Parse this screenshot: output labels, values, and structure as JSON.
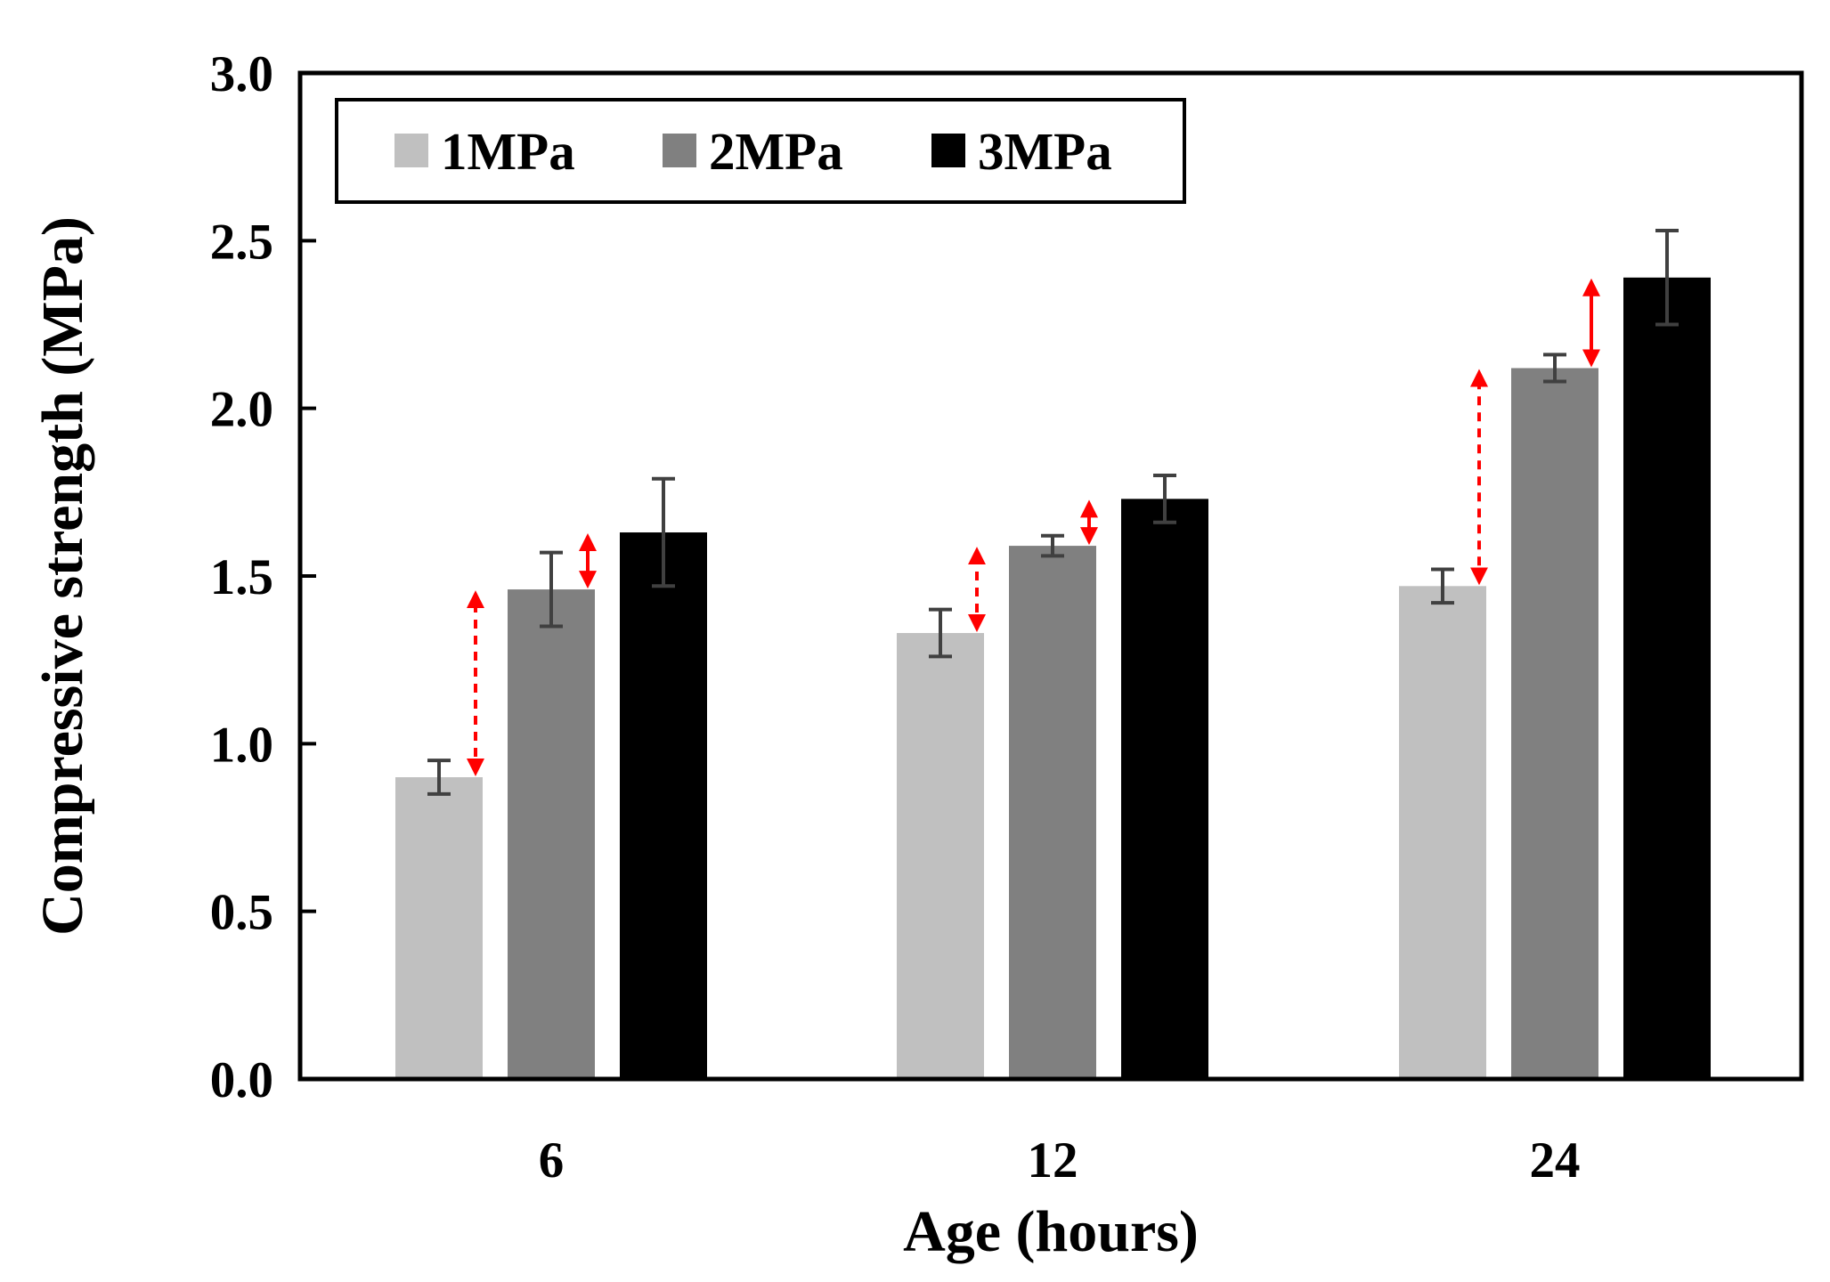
{
  "chart_data": {
    "type": "bar",
    "categories": [
      "6",
      "12",
      "24"
    ],
    "series": [
      {
        "name": "1MPa",
        "color": "#c0c0c0",
        "values": [
          0.9,
          1.33,
          1.47
        ],
        "errors": [
          0.05,
          0.07,
          0.05
        ]
      },
      {
        "name": "2MPa",
        "color": "#808080",
        "values": [
          1.46,
          1.59,
          2.12
        ],
        "errors": [
          0.11,
          0.03,
          0.04
        ]
      },
      {
        "name": "3MPa",
        "color": "#000000",
        "values": [
          1.63,
          1.73,
          2.39
        ],
        "errors": [
          0.16,
          0.07,
          0.14
        ]
      }
    ],
    "xlabel": "Age (hours)",
    "ylabel": "Compressive strength (MPa)",
    "ylim": [
      0,
      3.0
    ],
    "yticks": [
      "0.0",
      "0.5",
      "1.0",
      "1.5",
      "2.0",
      "2.5",
      "3.0"
    ],
    "grid": false,
    "legend_position": "top-left",
    "annotations": {
      "color": "#ff0000",
      "arrows": [
        {
          "category": "6",
          "from": 0.9,
          "to": 1.46,
          "style": "dashed"
        },
        {
          "category": "6",
          "from": 1.46,
          "to": 1.63,
          "style": "solid"
        },
        {
          "category": "12",
          "from": 1.33,
          "to": 1.59,
          "style": "dashed"
        },
        {
          "category": "12",
          "from": 1.59,
          "to": 1.73,
          "style": "solid"
        },
        {
          "category": "24",
          "from": 1.47,
          "to": 2.12,
          "style": "dashed"
        },
        {
          "category": "24",
          "from": 2.12,
          "to": 2.39,
          "style": "solid"
        }
      ]
    }
  }
}
